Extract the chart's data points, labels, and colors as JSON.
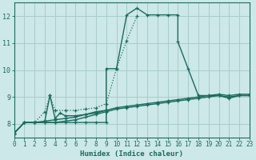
{
  "title": "",
  "xlabel": "Humidex (Indice chaleur)",
  "xlim": [
    0,
    23
  ],
  "ylim": [
    7.5,
    12.5
  ],
  "xticks": [
    0,
    1,
    2,
    3,
    4,
    5,
    6,
    7,
    8,
    9,
    10,
    11,
    12,
    13,
    14,
    15,
    16,
    17,
    18,
    19,
    20,
    21,
    22,
    23
  ],
  "yticks": [
    8,
    9,
    10,
    11,
    12
  ],
  "background_color": "#cde8e8",
  "grid_color": "#a8cccc",
  "line_color": "#1a6b5e",
  "curves": [
    {
      "style": "dotted",
      "x": [
        0,
        1,
        2,
        3,
        3.5,
        4,
        5,
        6,
        7,
        8,
        9,
        10,
        11,
        12
      ],
      "y": [
        7.65,
        8.05,
        8.05,
        8.45,
        9.05,
        8.5,
        8.5,
        8.5,
        8.55,
        8.6,
        8.75,
        10.05,
        11.1,
        12.0
      ]
    },
    {
      "style": "solid",
      "x": [
        0,
        1,
        2,
        3,
        4,
        5,
        6,
        7,
        8,
        9,
        9,
        10,
        11,
        12,
        13,
        14,
        15,
        16,
        16,
        17,
        18,
        19,
        20,
        21,
        22,
        23
      ],
      "y": [
        7.65,
        8.05,
        8.05,
        8.05,
        8.05,
        8.05,
        8.05,
        8.05,
        8.05,
        8.05,
        10.05,
        10.05,
        12.05,
        12.3,
        12.05,
        12.05,
        12.05,
        12.05,
        11.05,
        10.05,
        9.05,
        9.05,
        9.05,
        8.95,
        9.05,
        9.05
      ]
    },
    {
      "style": "solid",
      "x": [
        0,
        1,
        2,
        3,
        4,
        5,
        6,
        7,
        8,
        9,
        10,
        11,
        12,
        13,
        14,
        15,
        16,
        17,
        18,
        19,
        20,
        21,
        22,
        23
      ],
      "y": [
        7.65,
        8.05,
        8.05,
        8.05,
        8.05,
        8.1,
        8.15,
        8.25,
        8.35,
        8.45,
        8.55,
        8.6,
        8.65,
        8.7,
        8.75,
        8.8,
        8.85,
        8.9,
        8.95,
        9.0,
        9.05,
        9.0,
        9.05,
        9.05
      ]
    },
    {
      "style": "solid",
      "x": [
        0,
        1,
        2,
        3,
        4,
        5,
        6,
        7,
        8,
        9,
        10,
        11,
        12,
        13,
        14,
        15,
        16,
        17,
        18,
        19,
        20,
        21,
        22,
        23
      ],
      "y": [
        7.65,
        8.05,
        8.05,
        8.1,
        8.15,
        8.2,
        8.25,
        8.35,
        8.45,
        8.5,
        8.6,
        8.65,
        8.7,
        8.75,
        8.8,
        8.85,
        8.9,
        8.95,
        9.0,
        9.05,
        9.1,
        9.05,
        9.1,
        9.1
      ]
    },
    {
      "style": "solid",
      "x": [
        3,
        3.5,
        4,
        4.5,
        5,
        6,
        7,
        8,
        9
      ],
      "y": [
        8.1,
        9.05,
        8.2,
        8.4,
        8.3,
        8.3,
        8.35,
        8.4,
        8.5
      ]
    }
  ]
}
